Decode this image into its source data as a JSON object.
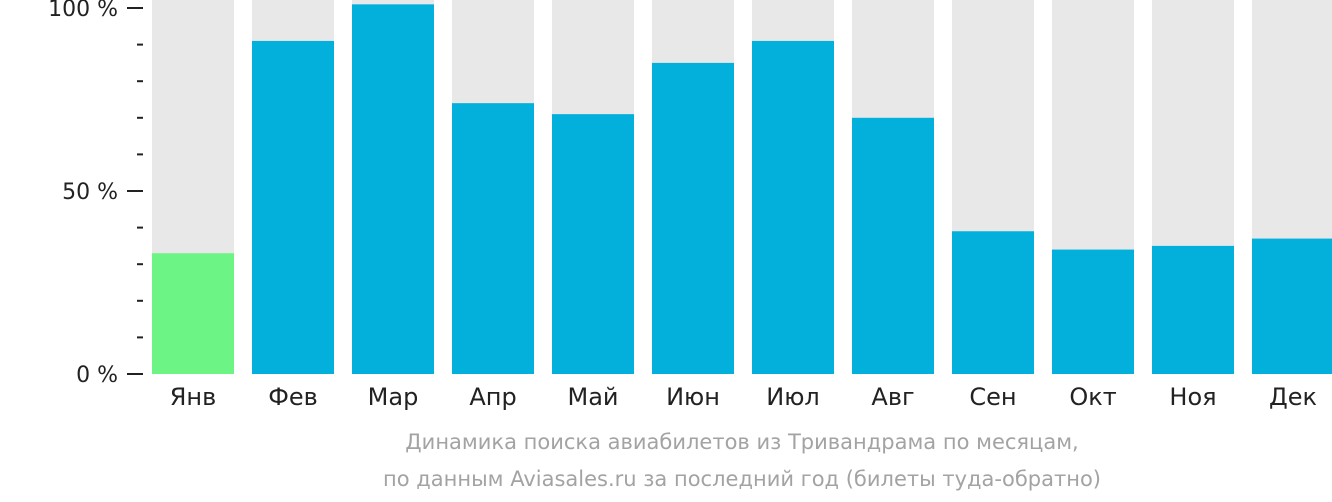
{
  "chart_data": {
    "type": "bar",
    "categories": [
      "Янв",
      "Фев",
      "Мар",
      "Апр",
      "Май",
      "Июн",
      "Июл",
      "Авг",
      "Сен",
      "Окт",
      "Ноя",
      "Дек"
    ],
    "values": [
      33,
      91,
      101,
      74,
      71,
      85,
      91,
      70,
      39,
      34,
      35,
      37
    ],
    "ylim": [
      0,
      100
    ],
    "yticks": [
      {
        "value": 0,
        "label": "0 %"
      },
      {
        "value": 50,
        "label": "50 %"
      },
      {
        "value": 100,
        "label": "100 %"
      }
    ],
    "minor_tick_step": 10,
    "highlight_index": 0,
    "colors": {
      "bar": "#03b0dc",
      "highlight": "#6cf584",
      "background": "#e8e8e8",
      "axis": "#222222",
      "caption": "#a3a3a3"
    },
    "caption_line1": "Динамика поиска авиабилетов из Тривандрама по месяцам,",
    "caption_line2": "по данным Aviasales.ru за последний год (билеты туда-обратно)"
  }
}
